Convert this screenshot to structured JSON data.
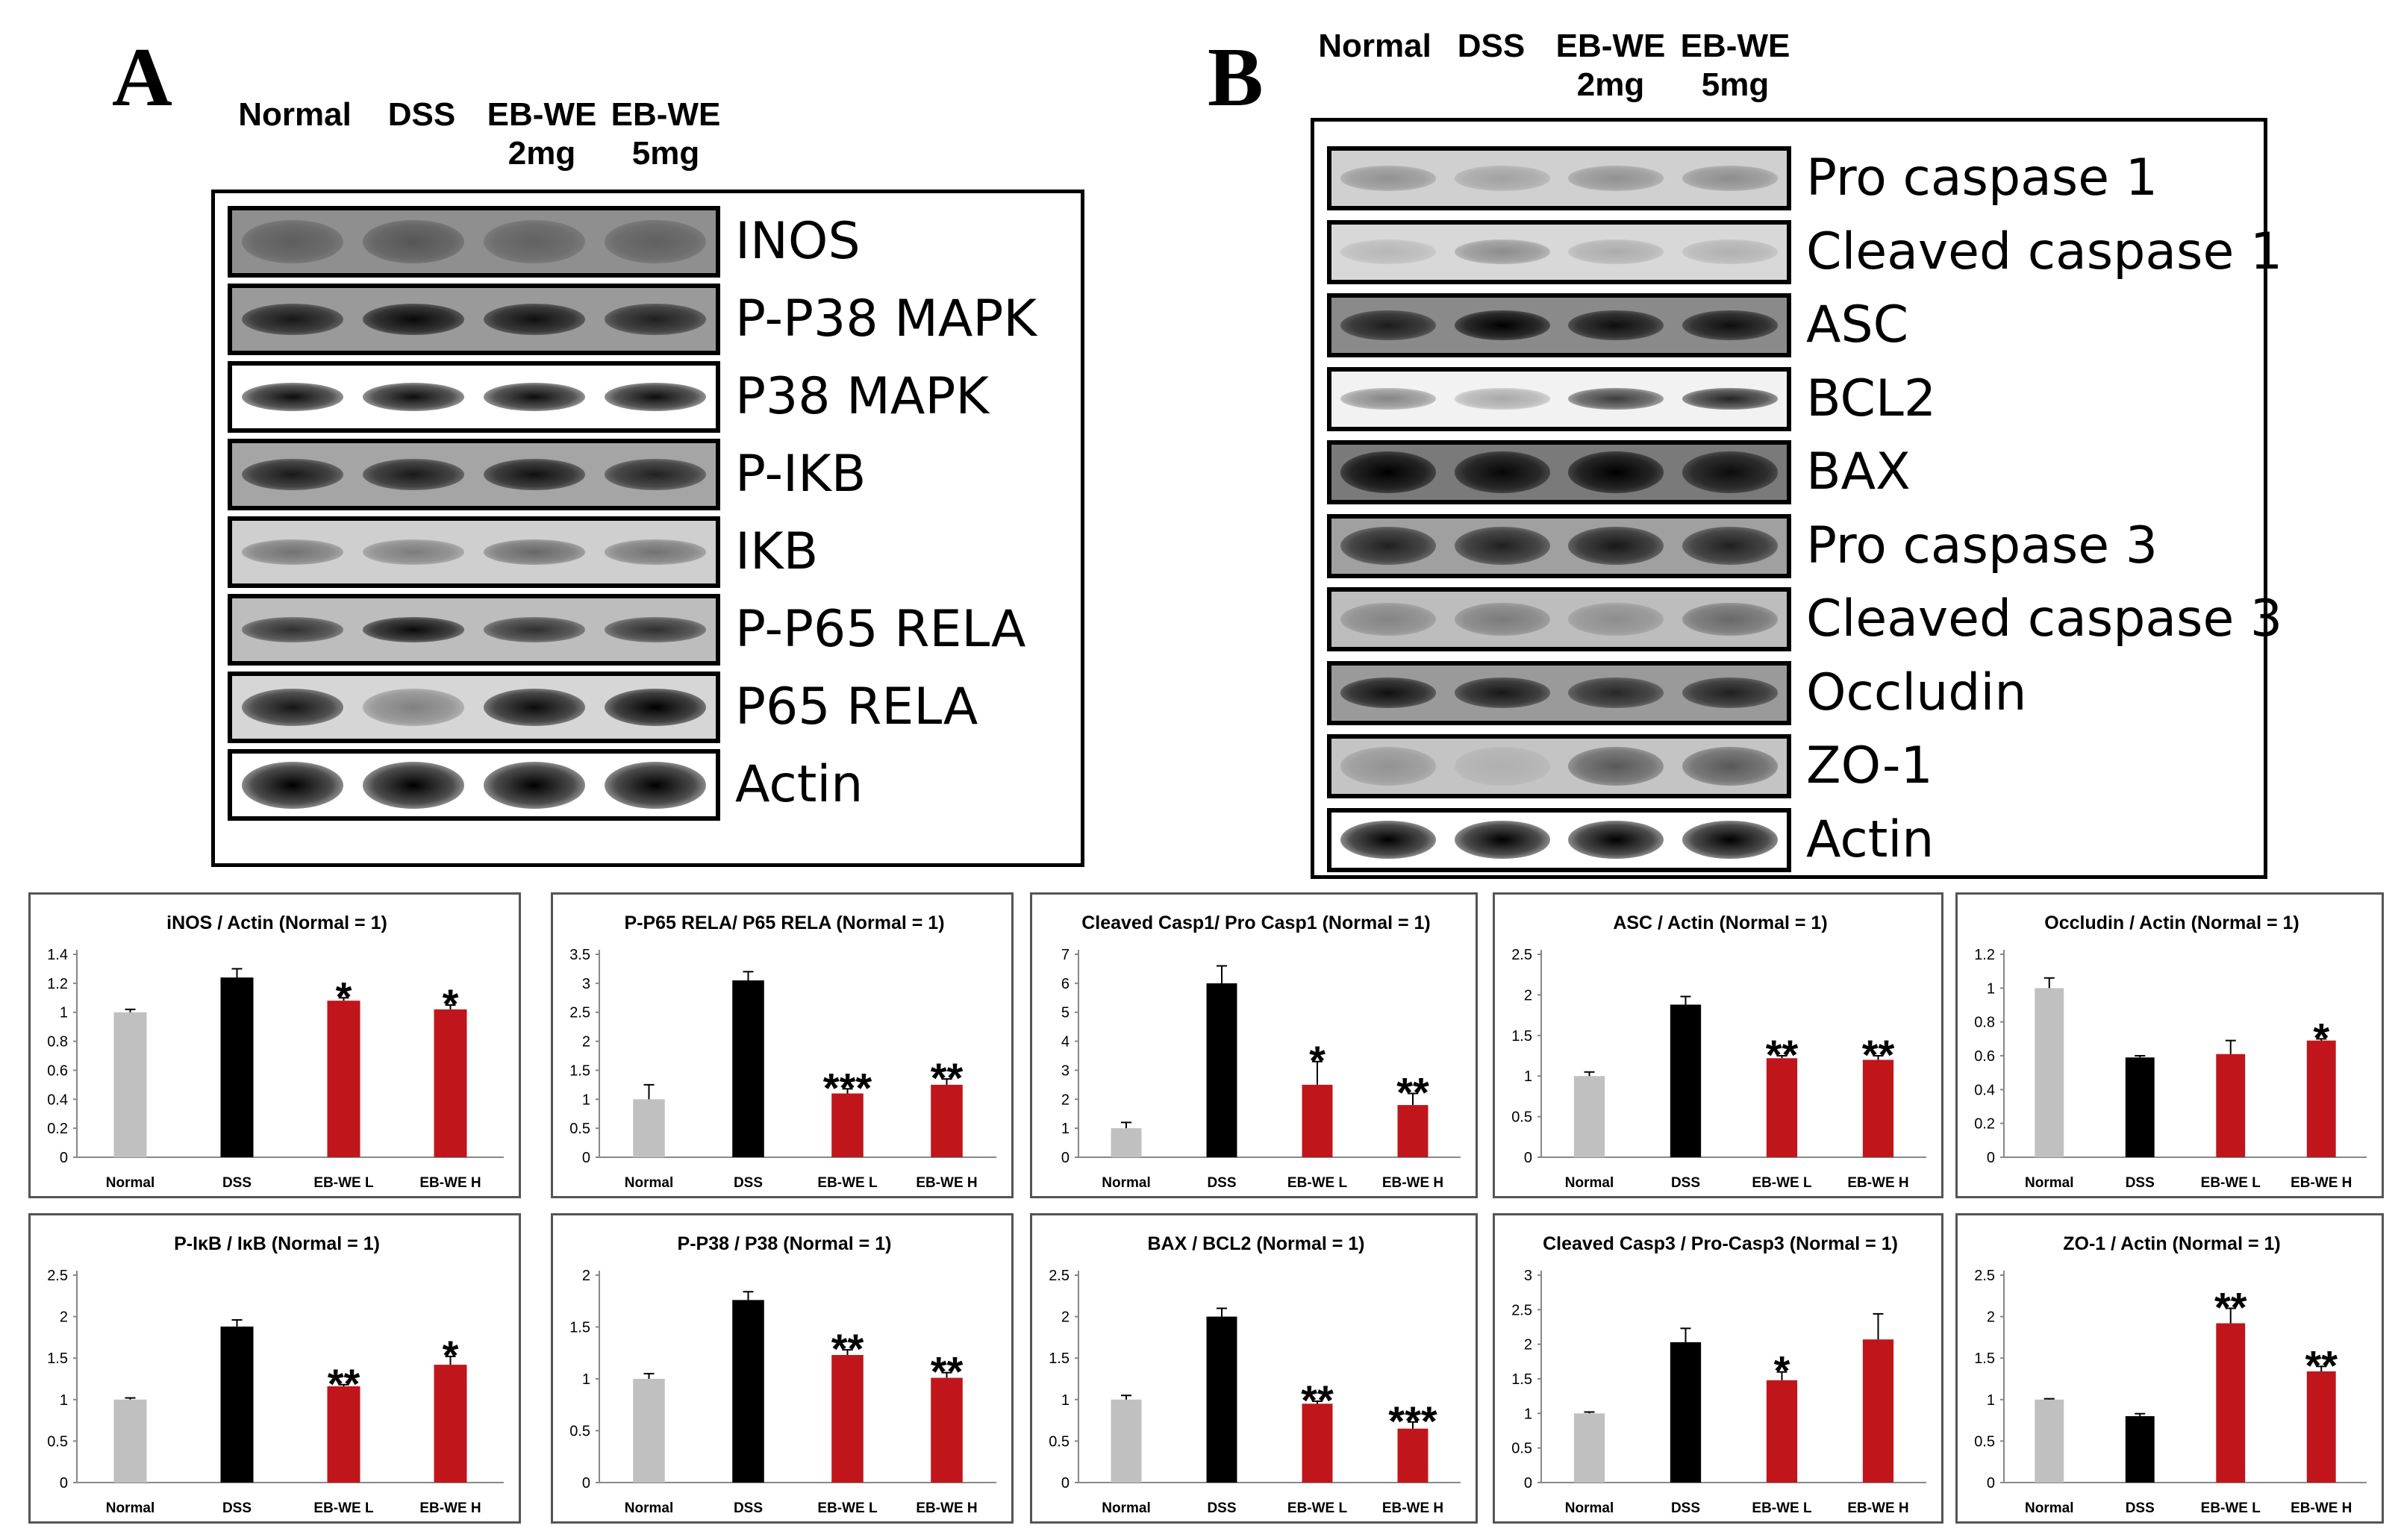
{
  "panels": {
    "A": {
      "letter": "A",
      "lanes": [
        {
          "line1": "Normal",
          "line2": ""
        },
        {
          "line1": "DSS",
          "line2": ""
        },
        {
          "line1": "EB-WE",
          "line2": "2mg"
        },
        {
          "line1": "EB-WE",
          "line2": "5mg"
        }
      ],
      "proteins": [
        "INOS",
        "P-P38 MAPK",
        "P38 MAPK",
        "P-IKB",
        "IKB",
        "P-P65 RELA",
        "P65 RELA",
        "Actin"
      ]
    },
    "B": {
      "letter": "B",
      "lanes": [
        {
          "line1": "Normal",
          "line2": ""
        },
        {
          "line1": "DSS",
          "line2": ""
        },
        {
          "line1": "EB-WE",
          "line2": "2mg"
        },
        {
          "line1": "EB-WE",
          "line2": "5mg"
        }
      ],
      "proteins": [
        "Pro caspase 1",
        "Cleaved caspase 1",
        "ASC",
        "BCL2",
        "BAX",
        "Pro caspase 3",
        "Cleaved caspase 3",
        "Occludin",
        "ZO-1",
        "Actin"
      ]
    }
  },
  "colors": {
    "normal": "#c0c0c0",
    "dss": "#000000",
    "treated": "#c0161b"
  },
  "chart_data": [
    {
      "type": "bar",
      "title": "iNOS / Actin (Normal = 1)",
      "categories": [
        "Normal",
        "DSS",
        "EB-WE L",
        "EB-WE H"
      ],
      "values": [
        1.0,
        1.24,
        1.08,
        1.02
      ],
      "errors": [
        0.02,
        0.06,
        0.02,
        0.03
      ],
      "significance": [
        "",
        "",
        "*",
        "*"
      ],
      "ylim": [
        0,
        1.4
      ],
      "yticks": [
        "0",
        "0.2",
        "0.4",
        "0.6",
        "0.8",
        "1",
        "1.2",
        "1.4"
      ]
    },
    {
      "type": "bar",
      "title": "P-P65 RELA/ P65 RELA (Normal = 1)",
      "categories": [
        "Normal",
        "DSS",
        "EB-WE L",
        "EB-WE H"
      ],
      "values": [
        1.0,
        3.05,
        1.1,
        1.25
      ],
      "errors": [
        0.25,
        0.15,
        0.08,
        0.1
      ],
      "significance": [
        "",
        "",
        "***",
        "**"
      ],
      "ylim": [
        0,
        3.5
      ],
      "yticks": [
        "0",
        "0.5",
        "1",
        "1.5",
        "2",
        "2.5",
        "3",
        "3.5"
      ]
    },
    {
      "type": "bar",
      "title": "Cleaved Casp1/ Pro Casp1 (Normal = 1)",
      "categories": [
        "Normal",
        "DSS",
        "EB-WE L",
        "EB-WE H"
      ],
      "values": [
        1.0,
        6.0,
        2.5,
        1.8
      ],
      "errors": [
        0.2,
        0.6,
        0.8,
        0.4
      ],
      "significance": [
        "",
        "",
        "*",
        "**"
      ],
      "ylim": [
        0,
        7
      ],
      "yticks": [
        "0",
        "1",
        "2",
        "3",
        "4",
        "5",
        "6",
        "7"
      ]
    },
    {
      "type": "bar",
      "title": "ASC / Actin (Normal = 1)",
      "categories": [
        "Normal",
        "DSS",
        "EB-WE L",
        "EB-WE H"
      ],
      "values": [
        1.0,
        1.88,
        1.22,
        1.2
      ],
      "errors": [
        0.05,
        0.1,
        0.03,
        0.05
      ],
      "significance": [
        "",
        "",
        "**",
        "**"
      ],
      "ylim": [
        0,
        2.5
      ],
      "yticks": [
        "0",
        "0.5",
        "1",
        "1.5",
        "2",
        "2.5"
      ]
    },
    {
      "type": "bar",
      "title": "Occludin / Actin (Normal = 1)",
      "categories": [
        "Normal",
        "DSS",
        "EB-WE L",
        "EB-WE H"
      ],
      "values": [
        1.0,
        0.59,
        0.61,
        0.69
      ],
      "errors": [
        0.06,
        0.01,
        0.08,
        0.01
      ],
      "significance": [
        "",
        "",
        "",
        "*"
      ],
      "ylim": [
        0,
        1.2
      ],
      "yticks": [
        "0",
        "0.2",
        "0.4",
        "0.6",
        "0.8",
        "1",
        "1.2"
      ]
    },
    {
      "type": "bar",
      "title": "P-IκB / IκB (Normal = 1)",
      "categories": [
        "Normal",
        "DSS",
        "EB-WE L",
        "EB-WE H"
      ],
      "values": [
        1.0,
        1.88,
        1.16,
        1.42
      ],
      "errors": [
        0.02,
        0.08,
        0.02,
        0.1
      ],
      "significance": [
        "",
        "",
        "**",
        "*"
      ],
      "ylim": [
        0,
        2.5
      ],
      "yticks": [
        "0",
        "0.5",
        "1",
        "1.5",
        "2",
        "2.5"
      ]
    },
    {
      "type": "bar",
      "title": "P-P38 / P38 (Normal = 1)",
      "categories": [
        "Normal",
        "DSS",
        "EB-WE L",
        "EB-WE H"
      ],
      "values": [
        1.0,
        1.76,
        1.23,
        1.01
      ],
      "errors": [
        0.05,
        0.08,
        0.05,
        0.05
      ],
      "significance": [
        "",
        "",
        "**",
        "**"
      ],
      "ylim": [
        0,
        2
      ],
      "yticks": [
        "0",
        "0.5",
        "1",
        "1.5",
        "2"
      ]
    },
    {
      "type": "bar",
      "title": "BAX / BCL2 (Normal = 1)",
      "categories": [
        "Normal",
        "DSS",
        "EB-WE L",
        "EB-WE H"
      ],
      "values": [
        1.0,
        2.0,
        0.95,
        0.65
      ],
      "errors": [
        0.05,
        0.1,
        0.03,
        0.08
      ],
      "significance": [
        "",
        "",
        "**",
        "***"
      ],
      "ylim": [
        0,
        2.5
      ],
      "yticks": [
        "0",
        "0.5",
        "1",
        "1.5",
        "2",
        "2.5"
      ]
    },
    {
      "type": "bar",
      "title": "Cleaved Casp3 / Pro-Casp3 (Normal = 1)",
      "categories": [
        "Normal",
        "DSS",
        "EB-WE L",
        "EB-WE H"
      ],
      "values": [
        1.0,
        2.03,
        1.48,
        2.07
      ],
      "errors": [
        0.02,
        0.2,
        0.12,
        0.37
      ],
      "significance": [
        "",
        "",
        "*",
        ""
      ],
      "ylim": [
        0,
        3
      ],
      "yticks": [
        "0",
        "0.5",
        "1",
        "1.5",
        "2",
        "2.5",
        "3"
      ]
    },
    {
      "type": "bar",
      "title": "ZO-1 / Actin (Normal = 1)",
      "categories": [
        "Normal",
        "DSS",
        "EB-WE L",
        "EB-WE H"
      ],
      "values": [
        1.0,
        0.8,
        1.92,
        1.34
      ],
      "errors": [
        0.01,
        0.03,
        0.18,
        0.06
      ],
      "significance": [
        "",
        "",
        "**",
        "**"
      ],
      "ylim": [
        0,
        2.5
      ],
      "yticks": [
        "0",
        "0.5",
        "1",
        "1.5",
        "2",
        "2.5"
      ]
    }
  ]
}
